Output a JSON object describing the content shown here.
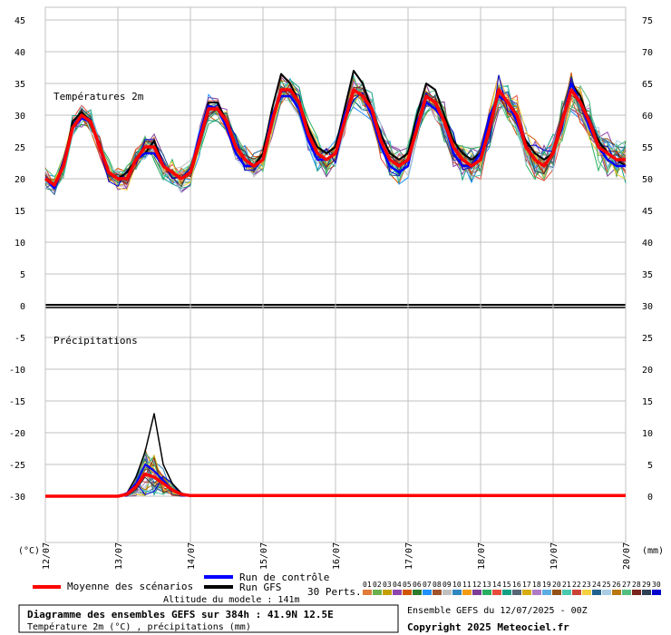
{
  "chart_data": {
    "type": "line",
    "title": "Diagramme des ensembles GEFS sur 384h : 41.9N 12.5E",
    "subtitle": "Température 2m (°C) , précipitations (mm)",
    "panel_temp_label": "Températures 2m",
    "panel_precip_label": "Précipitations",
    "y_left_unit": "(°C)",
    "y_right_unit": "(mm)",
    "y_left_ticks": [
      "45",
      "40",
      "35",
      "30",
      "25",
      "20",
      "15",
      "10",
      "5",
      "0",
      "-5",
      "-10",
      "-15",
      "-20",
      "-25",
      "-30"
    ],
    "y_right_ticks": [
      "75",
      "70",
      "65",
      "60",
      "55",
      "50",
      "45",
      "40",
      "35",
      "30",
      "25",
      "20",
      "15",
      "10",
      "5",
      "0"
    ],
    "x_ticks": [
      "12/07",
      "13/07",
      "14/07",
      "15/07",
      "16/07",
      "17/07",
      "18/07",
      "19/07",
      "20/07"
    ],
    "x_hours": [
      0,
      24,
      48,
      72,
      96,
      120,
      144,
      168,
      192
    ],
    "mean_temp": {
      "x": [
        0,
        3,
        6,
        9,
        12,
        15,
        18,
        21,
        24,
        27,
        30,
        33,
        36,
        39,
        42,
        45,
        48,
        51,
        54,
        57,
        60,
        63,
        66,
        69,
        72,
        75,
        78,
        81,
        84,
        87,
        90,
        93,
        96,
        99,
        102,
        105,
        108,
        111,
        114,
        117,
        120,
        123,
        126,
        129,
        132,
        135,
        138,
        141,
        144,
        147,
        150,
        153,
        156,
        159,
        162,
        165,
        168,
        171,
        174,
        177,
        180,
        183,
        186,
        189,
        192
      ],
      "y": [
        20,
        19,
        22,
        28,
        30,
        29,
        25,
        21,
        20,
        20,
        23,
        25,
        25,
        22,
        21,
        20,
        21,
        26,
        31,
        31,
        29,
        25,
        23,
        22,
        23,
        29,
        34,
        34,
        32,
        27,
        24,
        23,
        24,
        29,
        34,
        33,
        31,
        26,
        23,
        22,
        23,
        28,
        33,
        32,
        29,
        25,
        23,
        22,
        23,
        28,
        34,
        32,
        30,
        25,
        23,
        22,
        24,
        29,
        34,
        32,
        29,
        25,
        24,
        23,
        23
      ]
    },
    "control_temp": {
      "x": [
        0,
        3,
        6,
        9,
        12,
        15,
        18,
        21,
        24,
        27,
        30,
        33,
        36,
        39,
        42,
        45,
        48,
        51,
        54,
        57,
        60,
        63,
        66,
        69,
        72,
        75,
        78,
        81,
        84,
        87,
        90,
        93,
        96,
        99,
        102,
        105,
        108,
        111,
        114,
        117,
        120,
        123,
        126,
        129,
        132,
        135,
        138,
        141,
        144,
        147,
        150,
        153,
        156,
        159,
        162,
        165,
        168,
        171,
        174,
        177,
        180,
        183,
        186,
        189,
        192
      ],
      "y": [
        20,
        18.5,
        22,
        28,
        29.5,
        29,
        25,
        21,
        20,
        20,
        23,
        24,
        24,
        22,
        21,
        20,
        21,
        27,
        31.5,
        31,
        28,
        24,
        22,
        22,
        23,
        30,
        33,
        33,
        31,
        26,
        23,
        23,
        24,
        30,
        34,
        33,
        30,
        25,
        22,
        21,
        22,
        29,
        32,
        31,
        29,
        24,
        22,
        22,
        24,
        30,
        33,
        32,
        29,
        25,
        23,
        22,
        24,
        29,
        35,
        32,
        28,
        25,
        23,
        22,
        22
      ]
    },
    "gfs_temp": {
      "x": [
        0,
        3,
        6,
        9,
        12,
        15,
        18,
        21,
        24,
        27,
        30,
        33,
        36,
        39,
        42,
        45,
        48,
        51,
        54,
        57,
        60,
        63,
        66,
        69,
        72,
        75,
        78,
        81,
        84,
        87,
        90,
        93,
        96,
        99,
        102,
        105,
        108,
        111,
        114,
        117,
        120,
        123,
        126,
        129,
        132,
        135,
        138,
        141,
        144,
        147,
        150,
        153,
        156,
        159,
        162,
        165,
        168,
        171,
        174,
        177,
        180,
        183,
        186,
        189,
        192
      ],
      "y": [
        20,
        18.5,
        22,
        29,
        30.5,
        29,
        25,
        21,
        20,
        21,
        23,
        24,
        26,
        22,
        21,
        20,
        21,
        27,
        32,
        32,
        29,
        25,
        23,
        22,
        24,
        31,
        36.5,
        35,
        32,
        28,
        25,
        24,
        25,
        31,
        37,
        35,
        31,
        27,
        24,
        23,
        24,
        30,
        35,
        34,
        30,
        26,
        24,
        23,
        24,
        29,
        34,
        32,
        29,
        26,
        24,
        23,
        24,
        29,
        35,
        33,
        29,
        26,
        24,
        23,
        22
      ]
    },
    "mean_precip": {
      "x": [
        0,
        24,
        27,
        30,
        33,
        36,
        39,
        42,
        45,
        48,
        72,
        96,
        120,
        144,
        168,
        192
      ],
      "y": [
        0,
        0,
        0.3,
        1.5,
        3.5,
        3,
        2,
        1,
        0.3,
        0.1,
        0.1,
        0.1,
        0.1,
        0.1,
        0.1,
        0.1
      ]
    },
    "control_precip": {
      "x": [
        0,
        24,
        27,
        30,
        33,
        36,
        39,
        42,
        45,
        48,
        72,
        96,
        120,
        144,
        168,
        192
      ],
      "y": [
        0,
        0,
        0.5,
        2,
        5,
        4,
        2.5,
        1,
        0.3,
        0,
        0,
        0,
        0,
        0,
        0,
        0
      ]
    },
    "gfs_precip": {
      "x": [
        0,
        24,
        27,
        30,
        33,
        36,
        39,
        42,
        45,
        48,
        72,
        96,
        120,
        144,
        168,
        192
      ],
      "y": [
        0,
        0,
        0.5,
        3,
        7,
        13,
        5,
        2,
        0.5,
        0,
        0,
        0,
        0,
        0,
        0,
        0
      ]
    },
    "perturbation_colors": [
      "#e07b39",
      "#6ab04c",
      "#c2a000",
      "#8e44ad",
      "#d35400",
      "#2c7a2c",
      "#1e90ff",
      "#a0522d",
      "#c0c0c0",
      "#2e86c1",
      "#f39c12",
      "#7d3c98",
      "#27ae60",
      "#e74c3c",
      "#16a085",
      "#566573",
      "#d4ac0d",
      "#af7ac5",
      "#5dade2",
      "#935116",
      "#48c9b0",
      "#cb4335",
      "#f4d03f",
      "#1f618d",
      "#a9cce3",
      "#b9770e",
      "#52be80",
      "#7b241c",
      "#2e4053",
      "#0000cd"
    ]
  },
  "legend": {
    "mean_label": "Moyenne des scénarios",
    "control_label": "Run de contrôle",
    "gfs_label": "Run GFS",
    "perts_label": "30 Perts.",
    "pert_numbers": [
      "01",
      "02",
      "03",
      "04",
      "05",
      "06",
      "07",
      "08",
      "09",
      "10",
      "11",
      "12",
      "13",
      "14",
      "15",
      "16",
      "17",
      "18",
      "19",
      "20",
      "21",
      "22",
      "23",
      "24",
      "25",
      "26",
      "27",
      "28",
      "29",
      "30"
    ],
    "altitude": "Altitude du modele : 141m"
  },
  "footer": {
    "run_info": "Ensemble GEFS du 12/07/2025 - 00Z",
    "copyright": "Copyright 2025 Meteociel.fr"
  },
  "colors": {
    "mean": "#ff0000",
    "control": "#0000ff",
    "gfs": "#000000",
    "grid": "#c0c0c0"
  }
}
